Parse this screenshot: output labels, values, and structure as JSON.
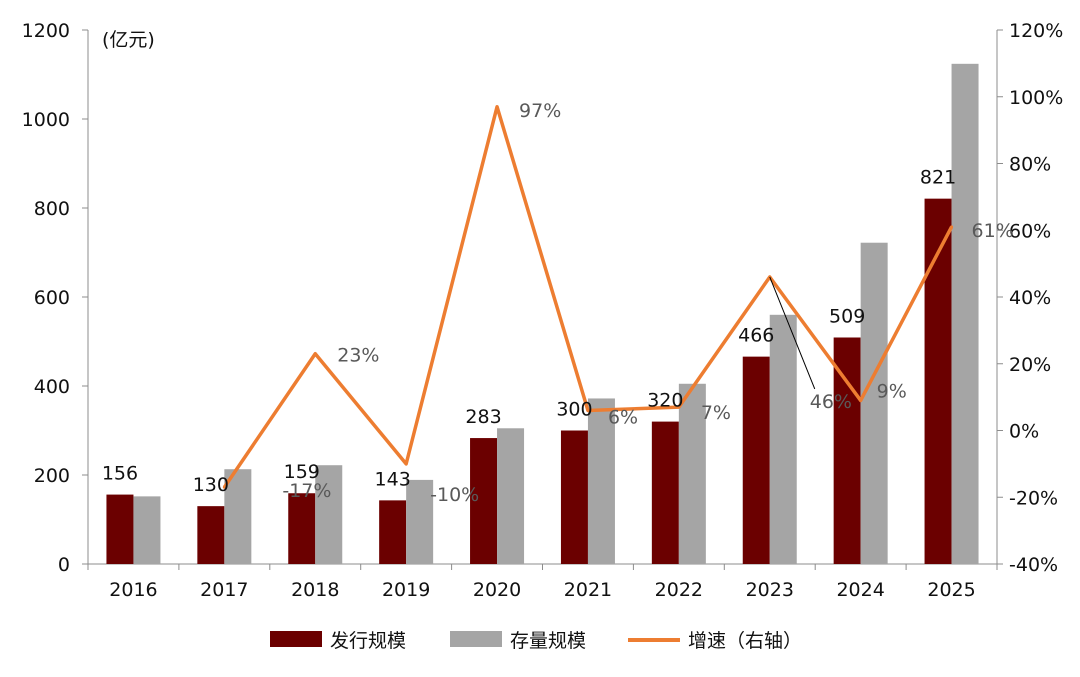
{
  "chart_data": {
    "type": "bar",
    "unit_label": "(亿元)",
    "categories": [
      "2016",
      "2017",
      "2018",
      "2019",
      "2020",
      "2021",
      "2022",
      "2023",
      "2024",
      "2025"
    ],
    "series": [
      {
        "name": "发行规模",
        "kind": "bar",
        "axis": "left",
        "color": "#6B0000",
        "values": [
          156,
          130,
          159,
          143,
          283,
          300,
          320,
          466,
          509,
          821
        ]
      },
      {
        "name": "存量规模",
        "kind": "bar",
        "axis": "left",
        "color": "#A5A5A5",
        "values": [
          152,
          213,
          222,
          189,
          305,
          372,
          405,
          560,
          722,
          1124
        ]
      },
      {
        "name": "增速（右轴）",
        "kind": "line",
        "axis": "right",
        "color": "#ED7D31",
        "values": [
          null,
          -17,
          23,
          -10,
          97,
          6,
          7,
          46,
          9,
          61
        ]
      }
    ],
    "bar_value_labels": [
      "156",
      "130",
      "159",
      "143",
      "283",
      "300",
      "320",
      "466",
      "509",
      "821"
    ],
    "growth_value_labels": [
      "",
      "-17%",
      "23%",
      "-10%",
      "97%",
      "6%",
      "7%",
      "46%",
      "9%",
      "61%"
    ],
    "left_axis": {
      "min": 0,
      "max": 1200,
      "ticks": [
        "0",
        "200",
        "400",
        "600",
        "800",
        "1000",
        "1200"
      ]
    },
    "right_axis": {
      "min": -40,
      "max": 120,
      "ticks": [
        "-40%",
        "-20%",
        "0%",
        "20%",
        "40%",
        "60%",
        "80%",
        "100%",
        "120%"
      ]
    },
    "legend_position": "bottom-center",
    "grid": false
  }
}
